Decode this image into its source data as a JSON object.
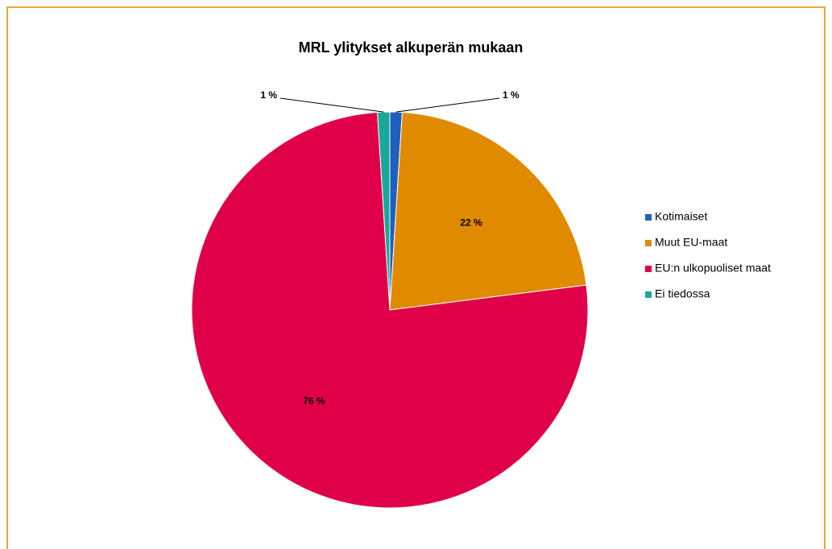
{
  "chart_data": {
    "type": "pie",
    "title": "MRL ylitykset alkuperän mukaan",
    "categories": [
      "Kotimaiset",
      "Muut EU-maat",
      "EU:n ulkopuoliset maat",
      "Ei tiedossa"
    ],
    "values": [
      1,
      22,
      76,
      1
    ],
    "value_labels": [
      "1 %",
      "22 %",
      "76 %",
      "1 %"
    ],
    "colors": [
      "#1f5fbf",
      "#e08a00",
      "#e0004a",
      "#1aa89a"
    ],
    "legend": "right"
  }
}
